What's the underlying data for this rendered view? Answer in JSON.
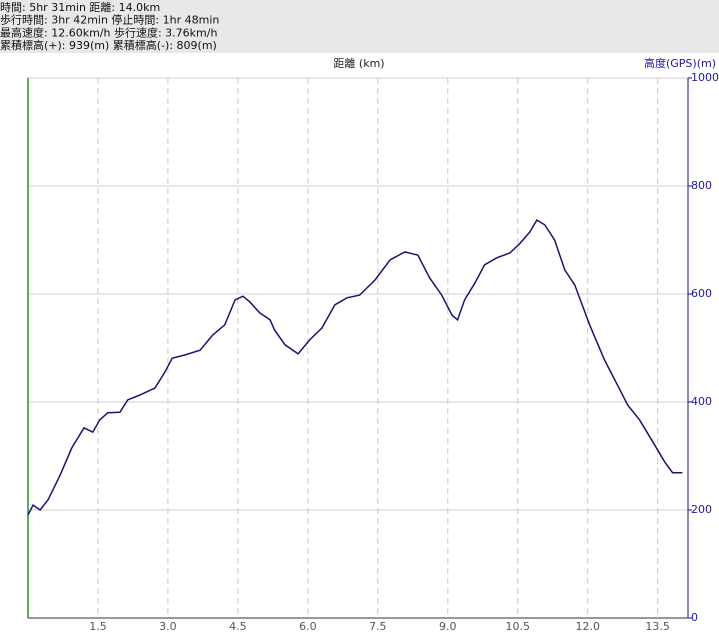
{
  "chart_data": {
    "type": "line",
    "summary": [
      "時間: 5hr 31min 距離: 14.0km",
      "歩行時間: 3hr 42min 停止時間: 1hr 48min",
      "最高速度: 12.60km/h 歩行速度: 3.76km/h",
      "累積標高(+): 939(m) 累積標高(-): 809(m)"
    ],
    "x_label": "距離 (km)",
    "y_label": "高度(GPS)(m)",
    "x": [
      0,
      0.11,
      0.26,
      0.43,
      0.69,
      0.94,
      1.2,
      1.39,
      1.54,
      1.71,
      1.97,
      2.14,
      2.4,
      2.72,
      2.94,
      3.09,
      3.36,
      3.69,
      3.96,
      4.22,
      4.44,
      4.61,
      4.76,
      4.97,
      5.19,
      5.29,
      5.51,
      5.79,
      6.04,
      6.3,
      6.58,
      6.84,
      7.11,
      7.44,
      7.76,
      8.08,
      8.36,
      8.61,
      8.87,
      9.09,
      9.21,
      9.36,
      9.58,
      9.79,
      10.05,
      10.33,
      10.54,
      10.76,
      10.91,
      11.08,
      11.29,
      11.51,
      11.72,
      12.04,
      12.36,
      12.64,
      12.86,
      13.11,
      13.37,
      13.65,
      13.82,
      14.03
    ],
    "values": [
      191,
      209,
      200,
      219,
      265,
      315,
      352,
      344,
      367,
      380,
      381,
      404,
      413,
      426,
      456,
      481,
      487,
      496,
      524,
      543,
      589,
      596,
      585,
      565,
      552,
      533,
      506,
      489,
      515,
      537,
      580,
      593,
      598,
      626,
      663,
      678,
      672,
      630,
      598,
      561,
      552,
      589,
      620,
      654,
      667,
      676,
      693,
      715,
      737,
      728,
      700,
      644,
      617,
      543,
      478,
      431,
      394,
      367,
      330,
      289,
      269,
      269
    ],
    "color": "#16166e",
    "xlim": [
      0,
      14.15
    ],
    "xticks": [
      1.5,
      {
        "value": 3,
        "label": "3.0"
      },
      4.5,
      {
        "value": 6,
        "label": "6.0"
      },
      7.5,
      {
        "value": 9,
        "label": "9.0"
      },
      10.5,
      {
        "value": 12,
        "label": "12.0"
      },
      13.5
    ],
    "ylim": [
      0,
      1000
    ],
    "yticks": [
      0,
      200,
      400,
      600,
      800,
      1000
    ],
    "grid": true
  }
}
